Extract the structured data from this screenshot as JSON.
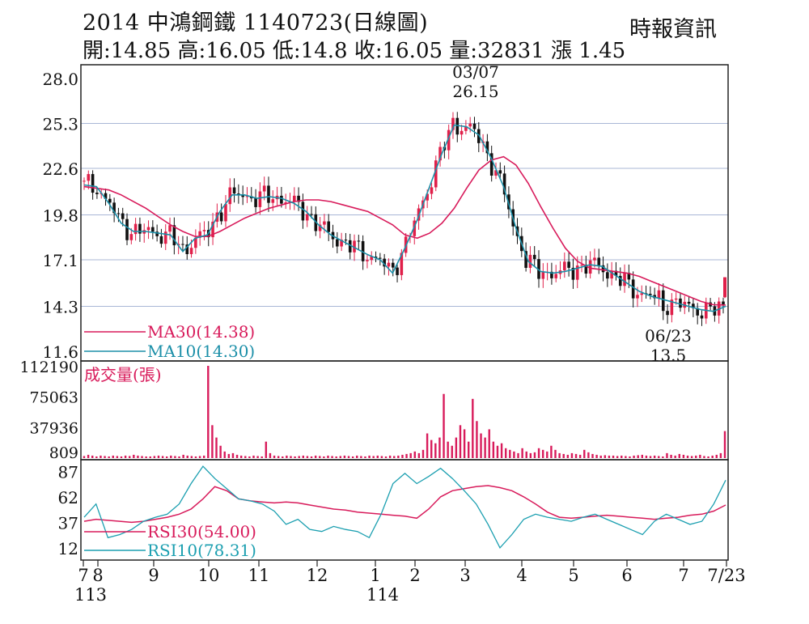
{
  "header": {
    "title": "2014  中鴻鋼鐵 1140723(日線圖)",
    "ohlc": "開:14.85 高:16.05 低:14.8 收:16.05 量:32831 漲 1.45",
    "source": "時報資訊"
  },
  "colors": {
    "ma30": "#d81b5b",
    "ma10": "#1b8fa8",
    "up": "#e0204a",
    "down": "#111111",
    "volume": "#d81b5b",
    "grid": "#a9b7d6",
    "rsi30": "#d81b5b",
    "rsi10": "#1b9fb0"
  },
  "chart_data": [
    {
      "type": "candlestick",
      "panel": "price",
      "y_ticks": [
        "28.0",
        "25.3",
        "22.6",
        "19.8",
        "17.1",
        "14.3",
        "11.6"
      ],
      "ylim": [
        11.6,
        28.0
      ],
      "x_ticks": [
        "7",
        "8",
        "9",
        "10",
        "11",
        "12",
        "1",
        "2",
        "3",
        "4",
        "5",
        "6",
        "7",
        "7/23"
      ],
      "x_year_labels": [
        "113",
        "114"
      ],
      "annotations": [
        {
          "date": "03/07",
          "value": "26.15",
          "label": "03/07",
          "value_label": "26.15"
        },
        {
          "date": "06/23",
          "value": "13.5",
          "label": "06/23",
          "value_label": "13.5"
        }
      ],
      "series": [
        {
          "name": "MA30(14.38)",
          "values": [
            21.5,
            21.4,
            21.3,
            21.0,
            20.6,
            20.2,
            19.7,
            19.2,
            18.8,
            18.5,
            18.5,
            18.8,
            19.2,
            19.6,
            19.9,
            20.2,
            20.4,
            20.6,
            20.7,
            20.7,
            20.6,
            20.4,
            20.2,
            20.0,
            19.6,
            19.2,
            18.6,
            18.4,
            18.7,
            19.3,
            20.2,
            21.4,
            22.5,
            23.1,
            23.3,
            22.8,
            21.7,
            20.3,
            19.0,
            17.8,
            17.0,
            16.6,
            16.5,
            16.4,
            16.3,
            16.1,
            15.8,
            15.5,
            15.2,
            14.9,
            14.6,
            14.4,
            14.38
          ]
        },
        {
          "name": "MA10(14.30)",
          "values": [
            21.6,
            21.5,
            20.5,
            19.3,
            18.8,
            18.8,
            18.7,
            18.6,
            17.6,
            18.4,
            18.6,
            20.0,
            21.0,
            21.0,
            20.8,
            20.9,
            20.8,
            20.5,
            20.0,
            19.2,
            18.6,
            18.2,
            17.8,
            17.4,
            17.1,
            16.3,
            17.8,
            19.5,
            21.5,
            23.5,
            25.2,
            25.1,
            24.6,
            23.2,
            21.5,
            19.0,
            17.0,
            16.4,
            16.3,
            16.4,
            16.6,
            16.8,
            16.7,
            16.2,
            15.7,
            15.2,
            14.9,
            14.7,
            14.5,
            14.3,
            14.1,
            14.0,
            14.3
          ]
        }
      ]
    },
    {
      "type": "bar",
      "panel": "volume",
      "title": "成交量(張)",
      "y_ticks": [
        "112190",
        "75063",
        "37936",
        "809"
      ],
      "ylim": [
        0,
        112190
      ],
      "values": [
        2500,
        4000,
        3000,
        2000,
        3000,
        2500,
        2000,
        3000,
        2500,
        2000,
        3000,
        2500,
        4000,
        3000,
        2500,
        2000,
        2000,
        2500,
        3000,
        2500,
        2000,
        3000,
        2500,
        2000,
        4000,
        3000,
        2500,
        2000,
        2500,
        3000,
        112190,
        40000,
        25000,
        15000,
        8000,
        5000,
        6000,
        4000,
        3000,
        2500,
        2000,
        3000,
        2500,
        2000,
        20000,
        6000,
        3000,
        2500,
        2000,
        3000,
        2500,
        2000,
        2500,
        3000,
        2500,
        2000,
        3000,
        2500,
        2000,
        3000,
        2500,
        2000,
        2500,
        3000,
        2500,
        2000,
        3000,
        2500,
        2000,
        3000,
        2500,
        3000,
        2500,
        2000,
        3000,
        2500,
        3000,
        4000,
        5000,
        6000,
        8000,
        6000,
        10000,
        30000,
        22000,
        18000,
        25000,
        78000,
        20000,
        15000,
        25000,
        40000,
        35000,
        20000,
        72000,
        45000,
        30000,
        25000,
        35000,
        20000,
        15000,
        18000,
        12000,
        10000,
        8000,
        6000,
        12000,
        8000,
        6000,
        7000,
        12000,
        10000,
        8000,
        15000,
        10000,
        6000,
        5000,
        4000,
        6000,
        5000,
        4000,
        10000,
        7000,
        5000,
        4000,
        3000,
        3500,
        3000,
        3000,
        2500,
        3000,
        2500,
        2000,
        3000,
        3500,
        4000,
        3000,
        2500,
        3000,
        2500,
        2000,
        6000,
        4000,
        3000,
        5000,
        4000,
        3000,
        2500,
        3000,
        4000,
        2500,
        2000,
        3000,
        4000,
        6000,
        32831
      ]
    },
    {
      "type": "line",
      "panel": "rsi",
      "y_ticks": [
        "87",
        "62",
        "37",
        "12"
      ],
      "ylim": [
        0,
        100
      ],
      "series": [
        {
          "name": "RSI30(54.00)",
          "values": [
            38,
            40,
            39,
            38,
            37,
            38,
            40,
            42,
            45,
            50,
            60,
            72,
            68,
            60,
            58,
            57,
            56,
            57,
            56,
            54,
            52,
            50,
            49,
            47,
            46,
            45,
            44,
            43,
            41,
            50,
            62,
            68,
            70,
            72,
            73,
            71,
            68,
            62,
            55,
            47,
            42,
            41,
            42,
            43,
            44,
            43,
            42,
            41,
            40,
            41,
            42,
            44,
            45,
            48,
            54
          ]
        },
        {
          "name": "RSI10(78.31)",
          "values": [
            42,
            55,
            22,
            25,
            30,
            38,
            42,
            45,
            55,
            75,
            92,
            80,
            70,
            60,
            58,
            55,
            48,
            35,
            40,
            30,
            28,
            33,
            30,
            28,
            22,
            45,
            75,
            85,
            75,
            82,
            90,
            80,
            68,
            55,
            35,
            12,
            25,
            40,
            45,
            42,
            40,
            38,
            42,
            45,
            40,
            35,
            30,
            25,
            38,
            45,
            40,
            35,
            38,
            55,
            78.31
          ]
        }
      ]
    }
  ]
}
